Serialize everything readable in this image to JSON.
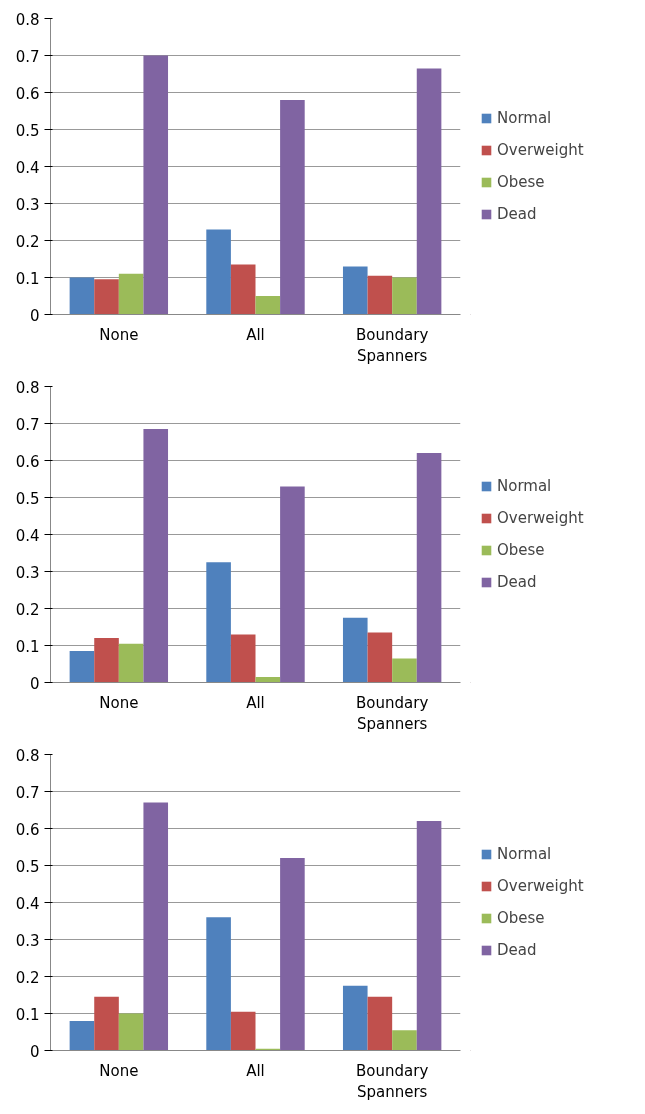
{
  "chart_data": [
    {
      "type": "bar",
      "categories": [
        "None",
        "All",
        "Boundary Spanners"
      ],
      "ylim": [
        0,
        0.8
      ],
      "yticks": [
        0,
        0.1,
        0.2,
        0.3,
        0.4,
        0.5,
        0.6,
        0.7,
        0.8
      ],
      "grid": "y",
      "legend": "right",
      "series": [
        {
          "name": "Normal",
          "color": "#4f81bd",
          "values": [
            0.1,
            0.23,
            0.13
          ]
        },
        {
          "name": "Overweight",
          "color": "#c0504d",
          "values": [
            0.095,
            0.135,
            0.105
          ]
        },
        {
          "name": "Obese",
          "color": "#9bbb59",
          "values": [
            0.11,
            0.05,
            0.1
          ]
        },
        {
          "name": "Dead",
          "color": "#8064a2",
          "values": [
            0.7,
            0.58,
            0.665
          ]
        }
      ]
    },
    {
      "type": "bar",
      "categories": [
        "None",
        "All",
        "Boundary Spanners"
      ],
      "ylim": [
        0,
        0.8
      ],
      "yticks": [
        0,
        0.1,
        0.2,
        0.3,
        0.4,
        0.5,
        0.6,
        0.7,
        0.8
      ],
      "grid": "y",
      "legend": "right",
      "series": [
        {
          "name": "Normal",
          "color": "#4f81bd",
          "values": [
            0.085,
            0.325,
            0.175
          ]
        },
        {
          "name": "Overweight",
          "color": "#c0504d",
          "values": [
            0.12,
            0.13,
            0.135
          ]
        },
        {
          "name": "Obese",
          "color": "#9bbb59",
          "values": [
            0.105,
            0.015,
            0.065
          ]
        },
        {
          "name": "Dead",
          "color": "#8064a2",
          "values": [
            0.685,
            0.53,
            0.62
          ]
        }
      ]
    },
    {
      "type": "bar",
      "categories": [
        "None",
        "All",
        "Boundary Spanners"
      ],
      "ylim": [
        0,
        0.8
      ],
      "yticks": [
        0,
        0.1,
        0.2,
        0.3,
        0.4,
        0.5,
        0.6,
        0.7,
        0.8
      ],
      "grid": "y",
      "legend": "right",
      "series": [
        {
          "name": "Normal",
          "color": "#4f81bd",
          "values": [
            0.08,
            0.36,
            0.175
          ]
        },
        {
          "name": "Overweight",
          "color": "#c0504d",
          "values": [
            0.145,
            0.105,
            0.145
          ]
        },
        {
          "name": "Obese",
          "color": "#9bbb59",
          "values": [
            0.1,
            0.005,
            0.055
          ]
        },
        {
          "name": "Dead",
          "color": "#8064a2",
          "values": [
            0.67,
            0.52,
            0.62
          ]
        }
      ]
    }
  ]
}
